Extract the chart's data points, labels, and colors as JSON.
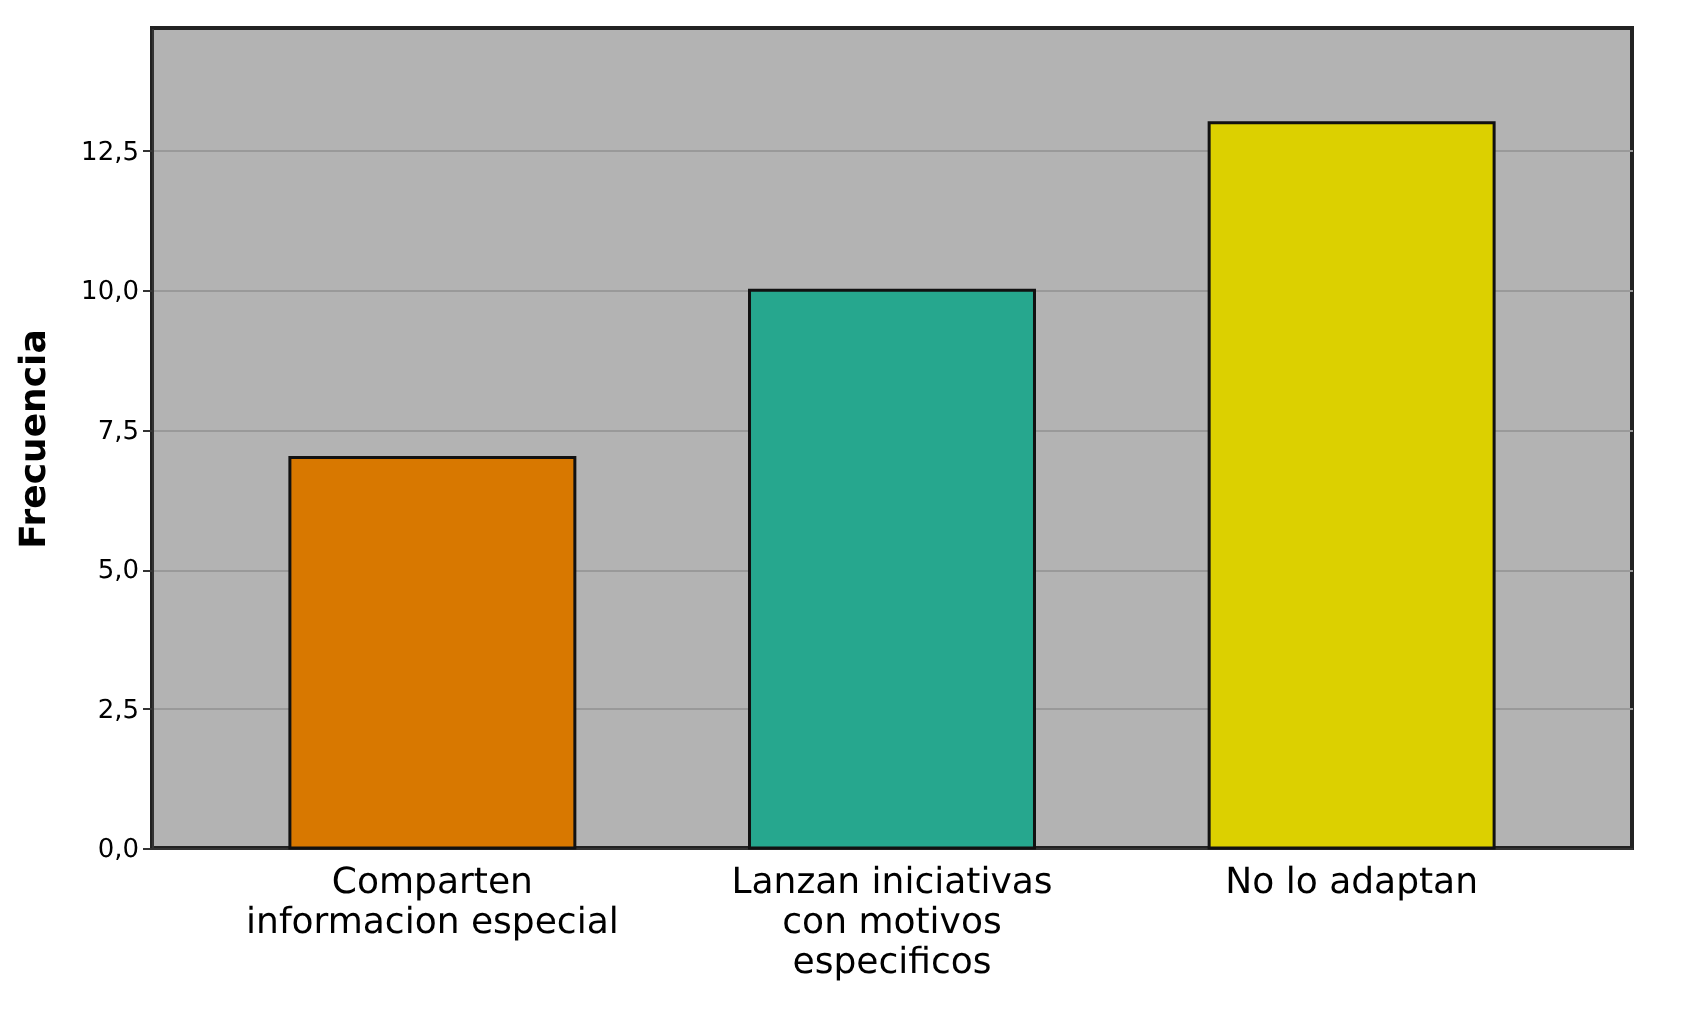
{
  "chart_data": {
    "type": "bar",
    "ylabel": "Frecuencia",
    "categories": [
      "Comparten informacion especial",
      "Lanzan iniciativas con motivos especificos",
      "No lo adaptan"
    ],
    "values": [
      7,
      10,
      13
    ],
    "colors": [
      "#d87800",
      "#26a78e",
      "#dcd000"
    ],
    "ylim": [
      0,
      14.7
    ],
    "yticks": [
      {
        "value": 0,
        "label": "0,0"
      },
      {
        "value": 2.5,
        "label": "2,5"
      },
      {
        "value": 5,
        "label": "5,0"
      },
      {
        "value": 7.5,
        "label": "7,5"
      },
      {
        "value": 10,
        "label": "10,0"
      },
      {
        "value": 12.5,
        "label": "12,5"
      }
    ],
    "grid": "y"
  }
}
